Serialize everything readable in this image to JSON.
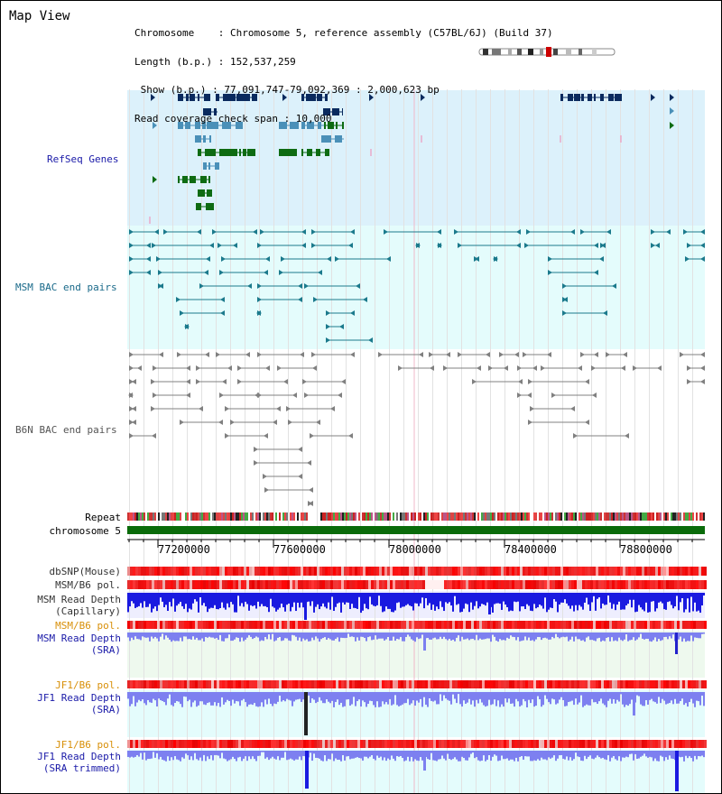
{
  "view": {
    "title": "Map View",
    "info": {
      "chromosome_line": "Chromosome    : Chromosome 5, reference assembly (C57BL/6J) (Build 37)",
      "length_line": "Length (b.p.) : 152,537,259",
      "show_line": " Show (b.p.) : 77,091,747-79,092,369 : 2,000,623 bp",
      "coverage_line": "Read coverage check span : 10,000"
    }
  },
  "tracks": {
    "refseq": "RefSeq Genes",
    "msm_bac": "MSM BAC end pairs",
    "b6n_bac": "B6N BAC end pairs",
    "repeat": "Repeat",
    "chromosome": "chromosome 5",
    "dbsnp": "dbSNP(Mouse)",
    "msm_b6_pol_1": "MSM/B6 pol.",
    "msm_read_depth_cap_1": "MSM Read Depth",
    "msm_read_depth_cap_2": "(Capillary)",
    "msm_b6_pol_2": "MSM/B6 pol.",
    "msm_read_depth_sra_1": "MSM Read Depth",
    "msm_read_depth_sra_2": "(SRA)",
    "jf1_b6_pol_1": "JF1/B6 pol.",
    "jf1_read_depth_sra_1": "JF1 Read Depth",
    "jf1_read_depth_sra_2": "(SRA)",
    "jf1_b6_pol_2": "JF1/B6 pol.",
    "jf1_read_depth_trim_1": "JF1 Read Depth",
    "jf1_read_depth_trim_2": "(SRA trimmed)"
  },
  "axis": {
    "ticks": [
      "77200000",
      "77600000",
      "78000000",
      "78400000",
      "78800000"
    ]
  },
  "colors": {
    "refseq_bg": "#dcf1fb",
    "bac_bg": "#e4fcfc",
    "gene_navy": "#0a2a5e",
    "gene_blue": "#4a90b8",
    "gene_green": "#0e6b12",
    "msm_line": "#1b7a8c",
    "b6n_line": "#808080",
    "depth_blue": "#1a1ae0",
    "depth_light": "#7d80f0",
    "label_navy": "#1a1aa8",
    "label_orange": "#d8900a",
    "label_teal": "#1a6a8a"
  }
}
